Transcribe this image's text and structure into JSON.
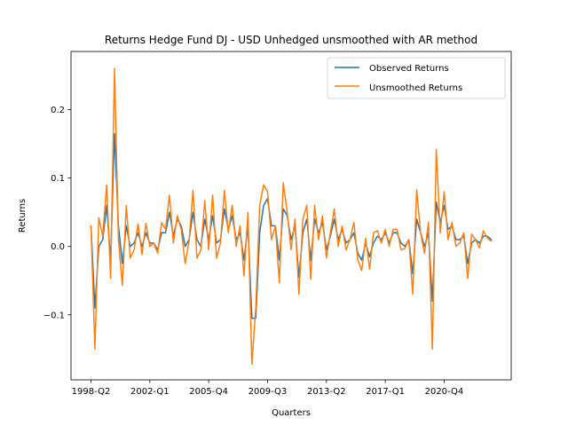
{
  "chart_data": {
    "type": "line",
    "title": "Returns Hedge Fund DJ - USD Unhedged unsmoothed with AR method",
    "xlabel": "Quarters",
    "ylabel": "Returns",
    "ylim": [
      -0.195,
      0.285
    ],
    "yticks": [
      -0.1,
      0.0,
      0.1,
      0.2
    ],
    "ytick_labels": [
      "−0.1",
      "0.0",
      "0.1",
      "0.2"
    ],
    "legend_position": "upper right",
    "grid": false,
    "x_start": "1998-Q2",
    "x": [
      "1998-Q2",
      "1998-Q3",
      "1998-Q4",
      "1999-Q1",
      "1999-Q2",
      "1999-Q3",
      "1999-Q4",
      "2000-Q1",
      "2000-Q2",
      "2000-Q3",
      "2000-Q4",
      "2001-Q1",
      "2001-Q2",
      "2001-Q3",
      "2001-Q4",
      "2002-Q1",
      "2002-Q2",
      "2002-Q3",
      "2002-Q4",
      "2003-Q1",
      "2003-Q2",
      "2003-Q3",
      "2003-Q4",
      "2004-Q1",
      "2004-Q2",
      "2004-Q3",
      "2004-Q4",
      "2005-Q1",
      "2005-Q2",
      "2005-Q3",
      "2005-Q4",
      "2006-Q1",
      "2006-Q2",
      "2006-Q3",
      "2006-Q4",
      "2007-Q1",
      "2007-Q2",
      "2007-Q3",
      "2007-Q4",
      "2008-Q1",
      "2008-Q2",
      "2008-Q3",
      "2008-Q4",
      "2009-Q1",
      "2009-Q2",
      "2009-Q3",
      "2009-Q4",
      "2010-Q1",
      "2010-Q2",
      "2010-Q3",
      "2010-Q4",
      "2011-Q1",
      "2011-Q2",
      "2011-Q3",
      "2011-Q4",
      "2012-Q1",
      "2012-Q2",
      "2012-Q3",
      "2012-Q4",
      "2013-Q1",
      "2013-Q2",
      "2013-Q3",
      "2013-Q4",
      "2014-Q1",
      "2014-Q2",
      "2014-Q3",
      "2014-Q4",
      "2015-Q1",
      "2015-Q2",
      "2015-Q3",
      "2015-Q4",
      "2016-Q1",
      "2016-Q2",
      "2016-Q3",
      "2016-Q4",
      "2017-Q1",
      "2017-Q2",
      "2017-Q3",
      "2017-Q4",
      "2018-Q1",
      "2018-Q2",
      "2018-Q3",
      "2018-Q4",
      "2019-Q1",
      "2019-Q2",
      "2019-Q3",
      "2019-Q4",
      "2020-Q1",
      "2020-Q2",
      "2020-Q3",
      "2020-Q4",
      "2021-Q1",
      "2021-Q2",
      "2021-Q3",
      "2021-Q4",
      "2022-Q1",
      "2022-Q2",
      "2022-Q3",
      "2022-Q4",
      "2023-Q1",
      "2023-Q2",
      "2023-Q3",
      "2023-Q4"
    ],
    "xticks": [
      "1998-Q2",
      "2002-Q1",
      "2005-Q4",
      "2009-Q3",
      "2013-Q2",
      "2017-Q1",
      "2020-Q4"
    ],
    "series": [
      {
        "name": "Observed Returns",
        "color": "#1f77b4",
        "values": [
          0.03,
          -0.09,
          0.0,
          0.01,
          0.06,
          -0.02,
          0.165,
          0.03,
          -0.025,
          0.03,
          0.0,
          0.005,
          0.02,
          0.0,
          0.02,
          0.005,
          0.005,
          -0.005,
          0.02,
          0.02,
          0.05,
          0.015,
          0.04,
          0.03,
          0.0,
          0.01,
          0.05,
          0.01,
          0.0,
          0.04,
          0.01,
          0.045,
          0.005,
          0.01,
          0.055,
          0.025,
          0.045,
          0.01,
          0.02,
          -0.02,
          0.03,
          -0.105,
          -0.105,
          0.02,
          0.06,
          0.07,
          0.03,
          0.03,
          -0.02,
          0.055,
          0.045,
          0.01,
          0.03,
          -0.045,
          0.02,
          0.04,
          -0.02,
          0.04,
          0.02,
          0.035,
          -0.005,
          0.015,
          0.04,
          0.01,
          0.025,
          0.005,
          0.01,
          0.02,
          -0.01,
          -0.02,
          0.005,
          -0.015,
          0.005,
          0.015,
          0.01,
          0.02,
          0.005,
          0.02,
          0.02,
          0.005,
          0.0,
          0.01,
          -0.04,
          0.04,
          0.02,
          0.0,
          0.02,
          -0.08,
          0.065,
          0.035,
          0.06,
          0.025,
          0.03,
          0.01,
          0.01,
          0.015,
          -0.025,
          0.005,
          0.01,
          0.005,
          0.015,
          0.015,
          0.01
        ]
      },
      {
        "name": "Unsmoothed Returns",
        "color": "#ff7f0e",
        "values": [
          0.03,
          -0.15,
          0.042,
          0.015,
          0.09,
          -0.047,
          0.26,
          0.01,
          -0.057,
          0.06,
          -0.017,
          -0.005,
          0.033,
          -0.012,
          0.034,
          0.0,
          0.005,
          -0.01,
          0.035,
          0.025,
          0.075,
          0.005,
          0.045,
          0.025,
          -0.025,
          0.008,
          0.082,
          -0.017,
          -0.005,
          0.067,
          -0.005,
          0.075,
          -0.017,
          0.005,
          0.082,
          0.02,
          0.06,
          0.0,
          0.03,
          -0.043,
          0.05,
          -0.172,
          -0.09,
          0.06,
          0.09,
          0.08,
          0.01,
          0.03,
          -0.053,
          0.093,
          0.05,
          -0.005,
          0.04,
          -0.07,
          0.04,
          0.06,
          -0.048,
          0.06,
          0.01,
          0.045,
          -0.017,
          0.02,
          0.055,
          0.0,
          0.03,
          -0.005,
          0.01,
          0.035,
          -0.02,
          -0.035,
          0.012,
          -0.033,
          0.02,
          0.023,
          0.005,
          0.025,
          0.0,
          0.025,
          0.025,
          -0.005,
          -0.003,
          0.01,
          -0.07,
          0.083,
          0.02,
          -0.01,
          0.035,
          -0.15,
          0.142,
          0.02,
          0.08,
          0.01,
          0.035,
          0.0,
          0.005,
          0.02,
          -0.047,
          0.018,
          0.01,
          -0.002,
          0.023,
          0.012,
          0.008
        ]
      }
    ]
  }
}
